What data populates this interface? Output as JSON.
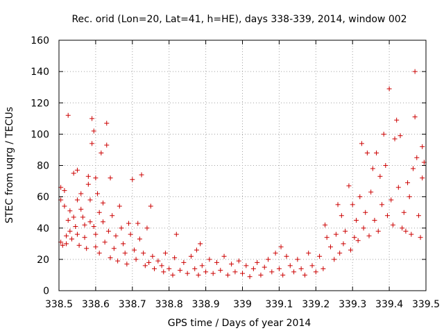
{
  "chart_data": {
    "type": "scatter",
    "title": "Rec. orid (Lon=20, Lat=41, h=HE), days 338-339, 2014, window 002",
    "xlabel": "GPS time / Days of year 2014",
    "ylabel": "STEC from uqrg / TECUs",
    "xlim": [
      338.5,
      339.5
    ],
    "ylim": [
      0,
      160
    ],
    "xticks": [
      "338.5",
      "338.6",
      "338.7",
      "338.8",
      "338.9",
      "339",
      "339.1",
      "339.2",
      "339.3",
      "339.4",
      "339.5"
    ],
    "yticks": [
      "0",
      "20",
      "40",
      "60",
      "80",
      "100",
      "120",
      "140",
      "160"
    ],
    "grid": true,
    "marker": "plus",
    "color": "#cc0000",
    "series": [
      {
        "points": [
          [
            338.505,
            66
          ],
          [
            338.505,
            58
          ],
          [
            338.505,
            31
          ],
          [
            338.51,
            29
          ],
          [
            338.515,
            64
          ],
          [
            338.515,
            54
          ],
          [
            338.52,
            35
          ],
          [
            338.52,
            30
          ],
          [
            338.525,
            112
          ],
          [
            338.525,
            45
          ],
          [
            338.53,
            51
          ],
          [
            338.53,
            38
          ],
          [
            338.535,
            33
          ],
          [
            338.54,
            75
          ],
          [
            338.54,
            47
          ],
          [
            338.545,
            41
          ],
          [
            338.55,
            77
          ],
          [
            338.55,
            58
          ],
          [
            338.55,
            36
          ],
          [
            338.555,
            29
          ],
          [
            338.56,
            62
          ],
          [
            338.56,
            52
          ],
          [
            338.565,
            47
          ],
          [
            338.57,
            42
          ],
          [
            338.57,
            34
          ],
          [
            338.575,
            27
          ],
          [
            338.58,
            73
          ],
          [
            338.58,
            68
          ],
          [
            338.585,
            58
          ],
          [
            338.585,
            44
          ],
          [
            338.59,
            110
          ],
          [
            338.59,
            94
          ],
          [
            338.595,
            102
          ],
          [
            338.595,
            41
          ],
          [
            338.6,
            72
          ],
          [
            338.6,
            36
          ],
          [
            338.6,
            28
          ],
          [
            338.605,
            62
          ],
          [
            338.61,
            50
          ],
          [
            338.61,
            24
          ],
          [
            338.615,
            88
          ],
          [
            338.62,
            56
          ],
          [
            338.62,
            44
          ],
          [
            338.625,
            31
          ],
          [
            338.63,
            107
          ],
          [
            338.63,
            93
          ],
          [
            338.635,
            38
          ],
          [
            338.64,
            72
          ],
          [
            338.64,
            21
          ],
          [
            338.645,
            48
          ],
          [
            338.65,
            27
          ],
          [
            338.655,
            35
          ],
          [
            338.66,
            19
          ],
          [
            338.665,
            54
          ],
          [
            338.67,
            40
          ],
          [
            338.675,
            30
          ],
          [
            338.68,
            24
          ],
          [
            338.685,
            17
          ],
          [
            338.69,
            43
          ],
          [
            338.695,
            36
          ],
          [
            338.7,
            71
          ],
          [
            338.705,
            26
          ],
          [
            338.71,
            20
          ],
          [
            338.715,
            43
          ],
          [
            338.72,
            33
          ],
          [
            338.725,
            74
          ],
          [
            338.73,
            24
          ],
          [
            338.735,
            16
          ],
          [
            338.74,
            40
          ],
          [
            338.745,
            18
          ],
          [
            338.75,
            54
          ],
          [
            338.755,
            22
          ],
          [
            338.76,
            14
          ],
          [
            338.77,
            19
          ],
          [
            338.78,
            16
          ],
          [
            338.785,
            12
          ],
          [
            338.79,
            24
          ],
          [
            338.8,
            14
          ],
          [
            338.81,
            10
          ],
          [
            338.815,
            21
          ],
          [
            338.82,
            36
          ],
          [
            338.83,
            13
          ],
          [
            338.84,
            18
          ],
          [
            338.85,
            11
          ],
          [
            338.86,
            22
          ],
          [
            338.87,
            14
          ],
          [
            338.875,
            26
          ],
          [
            338.88,
            10
          ],
          [
            338.885,
            30
          ],
          [
            338.89,
            16
          ],
          [
            338.9,
            12
          ],
          [
            338.91,
            20
          ],
          [
            338.92,
            11
          ],
          [
            338.93,
            18
          ],
          [
            338.94,
            13
          ],
          [
            338.95,
            22
          ],
          [
            338.96,
            10
          ],
          [
            338.97,
            17
          ],
          [
            338.98,
            12
          ],
          [
            338.99,
            19
          ],
          [
            339.0,
            11
          ],
          [
            339.01,
            16
          ],
          [
            339.02,
            9
          ],
          [
            339.03,
            14
          ],
          [
            339.04,
            18
          ],
          [
            339.05,
            10
          ],
          [
            339.06,
            15
          ],
          [
            339.07,
            20
          ],
          [
            339.08,
            12
          ],
          [
            339.09,
            24
          ],
          [
            339.1,
            14
          ],
          [
            339.105,
            28
          ],
          [
            339.11,
            10
          ],
          [
            339.12,
            22
          ],
          [
            339.13,
            16
          ],
          [
            339.14,
            12
          ],
          [
            339.15,
            20
          ],
          [
            339.16,
            14
          ],
          [
            339.17,
            10
          ],
          [
            339.18,
            24
          ],
          [
            339.19,
            16
          ],
          [
            339.2,
            12
          ],
          [
            339.21,
            22
          ],
          [
            339.22,
            14
          ],
          [
            339.225,
            42
          ],
          [
            339.23,
            34
          ],
          [
            339.24,
            28
          ],
          [
            339.25,
            20
          ],
          [
            339.255,
            36
          ],
          [
            339.26,
            55
          ],
          [
            339.265,
            24
          ],
          [
            339.27,
            48
          ],
          [
            339.275,
            30
          ],
          [
            339.28,
            38
          ],
          [
            339.29,
            67
          ],
          [
            339.295,
            26
          ],
          [
            339.3,
            55
          ],
          [
            339.305,
            34
          ],
          [
            339.31,
            45
          ],
          [
            339.315,
            32
          ],
          [
            339.32,
            60
          ],
          [
            339.325,
            94
          ],
          [
            339.33,
            40
          ],
          [
            339.335,
            50
          ],
          [
            339.34,
            88
          ],
          [
            339.345,
            35
          ],
          [
            339.35,
            63
          ],
          [
            339.355,
            78
          ],
          [
            339.36,
            45
          ],
          [
            339.365,
            88
          ],
          [
            339.37,
            38
          ],
          [
            339.375,
            73
          ],
          [
            339.38,
            55
          ],
          [
            339.385,
            100
          ],
          [
            339.39,
            80
          ],
          [
            339.395,
            48
          ],
          [
            339.4,
            129
          ],
          [
            339.405,
            58
          ],
          [
            339.41,
            42
          ],
          [
            339.415,
            97
          ],
          [
            339.42,
            109
          ],
          [
            339.425,
            66
          ],
          [
            339.43,
            99
          ],
          [
            339.435,
            40
          ],
          [
            339.44,
            50
          ],
          [
            339.445,
            38
          ],
          [
            339.45,
            69
          ],
          [
            339.455,
            60
          ],
          [
            339.46,
            36
          ],
          [
            339.465,
            78
          ],
          [
            339.47,
            140
          ],
          [
            339.47,
            111
          ],
          [
            339.475,
            85
          ],
          [
            339.48,
            48
          ],
          [
            339.485,
            34
          ],
          [
            339.49,
            92
          ],
          [
            339.49,
            72
          ],
          [
            339.495,
            82
          ]
        ]
      }
    ]
  }
}
